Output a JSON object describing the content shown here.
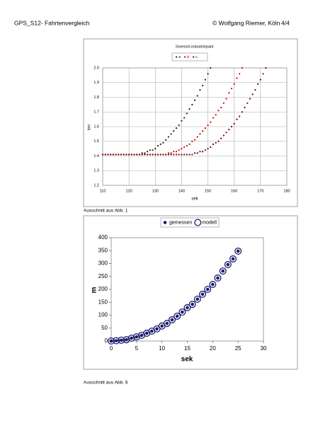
{
  "header": {
    "left": "GPS_S12- Fahrtenvergleich",
    "center": "© Wolfgang Riemer, Köln",
    "right": "4/4"
  },
  "captions": [
    "Ausschnitt aus Abb. 1",
    "Ausschnitt aus Abb. 6"
  ],
  "chart_data": [
    {
      "type": "scatter",
      "title": "lövenich-industriepark",
      "x_label": "sek",
      "y_label": "km",
      "xlim": [
        110,
        180
      ],
      "ylim": [
        1.2,
        2.0
      ],
      "xticks": [
        110,
        120,
        130,
        140,
        150,
        160,
        170,
        180
      ],
      "yticks": [
        1.2,
        1.3,
        1.4,
        1.5,
        1.6,
        1.7,
        1.8,
        1.9,
        {
          "value": 2,
          "label": "2.0"
        }
      ],
      "grid": true,
      "x": [
        110,
        111,
        112,
        113,
        114,
        115,
        116,
        117,
        118,
        119,
        120,
        121,
        122,
        123,
        124,
        125,
        126,
        127,
        128,
        129,
        130,
        131,
        132,
        133,
        134,
        135,
        136,
        137,
        138,
        139,
        140,
        141,
        142,
        143,
        144,
        145,
        146,
        147,
        148,
        149,
        150,
        151,
        152,
        153,
        154,
        155,
        156,
        157,
        158,
        159,
        160,
        161,
        162,
        163,
        164,
        165,
        166,
        167,
        168,
        169,
        170,
        171,
        172
      ],
      "series": [
        {
          "name": "a",
          "color": "#1a1a1a",
          "marker": "dot",
          "values": [
            1.41,
            1.41,
            1.41,
            1.41,
            1.41,
            1.41,
            1.41,
            1.41,
            1.41,
            1.41,
            1.41,
            1.41,
            1.41,
            1.41,
            1.41,
            1.42,
            1.42,
            1.43,
            1.44,
            1.44,
            1.45,
            1.47,
            1.48,
            1.49,
            1.51,
            1.53,
            1.55,
            1.57,
            1.59,
            1.61,
            1.64,
            1.66,
            1.69,
            1.72,
            1.75,
            1.78,
            1.81,
            1.85,
            1.88,
            1.92,
            1.96,
            2.0,
            null,
            null,
            null,
            null,
            null,
            null,
            null,
            null,
            null,
            null,
            null,
            null,
            null,
            null,
            null,
            null,
            null,
            null,
            null,
            null,
            null
          ]
        },
        {
          "name": "b",
          "color": "#d00000",
          "marker": "dot",
          "values": [
            1.41,
            1.41,
            1.41,
            1.41,
            1.41,
            1.41,
            1.41,
            1.41,
            1.41,
            1.41,
            1.41,
            1.41,
            1.41,
            1.41,
            1.41,
            1.41,
            1.41,
            1.41,
            1.41,
            1.41,
            1.41,
            1.41,
            1.41,
            1.41,
            1.41,
            1.42,
            1.42,
            1.43,
            1.43,
            1.44,
            1.45,
            1.46,
            1.47,
            1.48,
            1.5,
            1.51,
            1.53,
            1.55,
            1.57,
            1.59,
            1.61,
            1.63,
            1.66,
            1.68,
            1.71,
            1.73,
            1.76,
            1.79,
            1.83,
            1.86,
            1.89,
            1.93,
            1.96,
            2.0,
            null,
            null,
            null,
            null,
            null,
            null,
            null,
            null,
            null
          ]
        },
        {
          "name": "c",
          "color": "#6a0000",
          "marker": "dot",
          "values": [
            1.41,
            1.41,
            1.41,
            1.41,
            1.41,
            1.41,
            1.41,
            1.41,
            1.41,
            1.41,
            1.41,
            1.41,
            1.41,
            1.41,
            1.41,
            1.41,
            1.41,
            1.41,
            1.41,
            1.41,
            1.41,
            1.41,
            1.41,
            1.41,
            1.41,
            1.41,
            1.41,
            1.41,
            1.41,
            1.41,
            1.41,
            1.41,
            1.41,
            1.41,
            1.41,
            1.42,
            1.42,
            1.43,
            1.43,
            1.44,
            1.45,
            1.46,
            1.48,
            1.49,
            1.5,
            1.52,
            1.54,
            1.56,
            1.58,
            1.6,
            1.62,
            1.65,
            1.67,
            1.7,
            1.73,
            1.76,
            1.79,
            1.82,
            1.85,
            1.89,
            1.92,
            1.96,
            2.0
          ]
        }
      ]
    },
    {
      "type": "scatter",
      "x_label": "sek",
      "y_label": "m",
      "xlim": [
        0,
        30
      ],
      "ylim": [
        0,
        400
      ],
      "xticks": [
        0,
        5,
        10,
        15,
        20,
        25,
        30
      ],
      "yticks": [
        0,
        50,
        100,
        150,
        200,
        250,
        300,
        350,
        400
      ],
      "grid": false,
      "x": [
        0,
        1,
        2,
        3,
        4,
        5,
        6,
        7,
        8,
        9,
        10,
        11,
        12,
        13,
        14,
        15,
        16,
        17,
        18,
        19,
        20,
        21,
        22,
        23,
        24,
        25
      ],
      "series": [
        {
          "name": "gemessen",
          "color": "#1a1a6e",
          "marker": "dot",
          "values": [
            0,
            1,
            3,
            5,
            11,
            16,
            22,
            30,
            38,
            47,
            58,
            68,
            82,
            96,
            112,
            129,
            142,
            162,
            181,
            200,
            219,
            244,
            271,
            296,
            318,
            348
          ]
        },
        {
          "name": "modell",
          "color": "#1a1a6e",
          "marker": "ring",
          "values": [
            0,
            1,
            3,
            5,
            11,
            16,
            22,
            30,
            38,
            47,
            58,
            68,
            82,
            96,
            112,
            129,
            142,
            162,
            181,
            200,
            219,
            244,
            271,
            296,
            318,
            348
          ]
        }
      ]
    }
  ]
}
